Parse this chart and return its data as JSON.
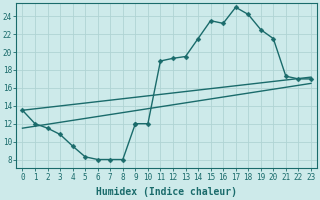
{
  "xlabel": "Humidex (Indice chaleur)",
  "bg_color": "#cdeaea",
  "line_color": "#1a6b6b",
  "grid_color": "#b0d4d4",
  "xlim": [
    -0.5,
    23.5
  ],
  "ylim": [
    7,
    25.5
  ],
  "xticks": [
    0,
    1,
    2,
    3,
    4,
    5,
    6,
    7,
    8,
    9,
    10,
    11,
    12,
    13,
    14,
    15,
    16,
    17,
    18,
    19,
    20,
    21,
    22,
    23
  ],
  "yticks": [
    8,
    10,
    12,
    14,
    16,
    18,
    20,
    22,
    24
  ],
  "curve_x": [
    0,
    1,
    2,
    3,
    4,
    5,
    6,
    7,
    8,
    9,
    10,
    11,
    12,
    13,
    14,
    15,
    16,
    17,
    18,
    19,
    20,
    21,
    22,
    23
  ],
  "curve_y": [
    13.5,
    12.0,
    11.5,
    10.8,
    9.5,
    8.3,
    8.0,
    8.0,
    8.0,
    12.0,
    12.0,
    19.0,
    19.3,
    19.5,
    21.5,
    23.5,
    23.2,
    25.0,
    24.2,
    22.5,
    21.5,
    17.3,
    17.0,
    17.0
  ],
  "seg1_end": 9,
  "seg2_start": 9,
  "trend1_x": [
    0,
    23
  ],
  "trend1_y": [
    11.5,
    16.5
  ],
  "trend2_x": [
    0,
    23
  ],
  "trend2_y": [
    13.5,
    17.2
  ],
  "markersize": 2.5,
  "linewidth": 1.0
}
